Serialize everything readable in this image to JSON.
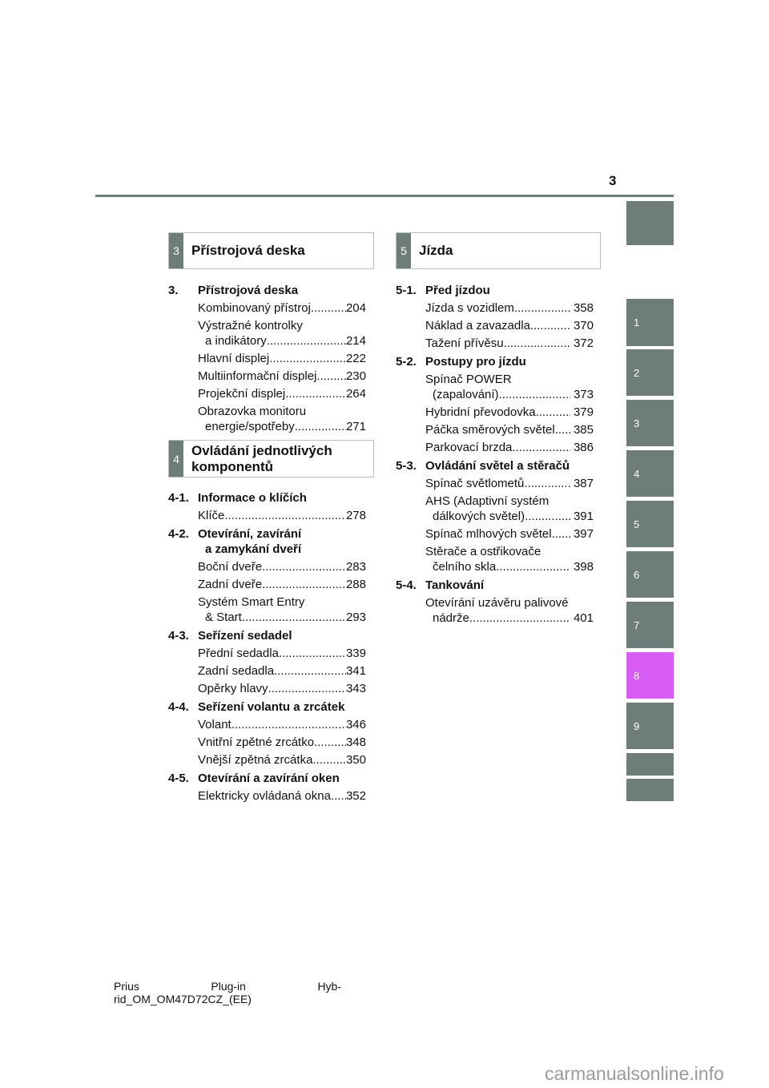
{
  "page_number": "3",
  "colors": {
    "tab_gray": "#6e7c7a",
    "tab_active": "#d65cf5"
  },
  "side_tabs": [
    "",
    "1",
    "2",
    "3",
    "4",
    "5",
    "6",
    "7",
    "8",
    "9",
    "",
    ""
  ],
  "active_tab": "8",
  "left": {
    "header1": {
      "num": "3",
      "title": "Přístrojová deska"
    },
    "block1": [
      {
        "num": "3.",
        "title": "Přístrojová deska",
        "entries": [
          {
            "lines": [],
            "label": "Kombinovaný přístroj",
            "page": "204"
          },
          {
            "lines": [
              "Výstražné kontrolky"
            ],
            "label": "a indikátory ",
            "page": "214"
          },
          {
            "lines": [],
            "label": "Hlavní displej ",
            "page": "222"
          },
          {
            "lines": [],
            "label": "Multiinformační displej ",
            "page": "230"
          },
          {
            "lines": [],
            "label": "Projekční displej",
            "page": "264"
          },
          {
            "lines": [
              "Obrazovka monitoru"
            ],
            "label": "energie/spotřeby ",
            "page": "271"
          }
        ]
      }
    ],
    "header2": {
      "num": "4",
      "title_line1": "Ovládání jednotlivých",
      "title_line2": "komponentů"
    },
    "block2": [
      {
        "num": "4-1.",
        "title": "Informace o klíčích",
        "entries": [
          {
            "lines": [],
            "label": "Klíče",
            "page": "278"
          }
        ]
      },
      {
        "num": "4-2.",
        "title": "Otevírání, zavírání",
        "title2": "a zamykání dveří",
        "entries": [
          {
            "lines": [],
            "label": "Boční dveře",
            "page": "283"
          },
          {
            "lines": [],
            "label": "Zadní dveře",
            "page": "288"
          },
          {
            "lines": [
              "Systém Smart Entry"
            ],
            "label": "& Start",
            "page": "293"
          }
        ]
      },
      {
        "num": "4-3.",
        "title": "Seřízení sedadel",
        "entries": [
          {
            "lines": [],
            "label": "Přední sedadla",
            "page": "339"
          },
          {
            "lines": [],
            "label": "Zadní sedadla ",
            "page": "341"
          },
          {
            "lines": [],
            "label": "Opěrky hlavy",
            "page": "343"
          }
        ]
      },
      {
        "num": "4-4.",
        "title": "Seřízení volantu a zrcátek",
        "entries": [
          {
            "lines": [],
            "label": "Volant",
            "page": "346"
          },
          {
            "lines": [],
            "label": "Vnitřní zpětné zrcátko ",
            "page": "348"
          },
          {
            "lines": [],
            "label": "Vnější zpětná zrcátka ",
            "page": "350"
          }
        ]
      },
      {
        "num": "4-5.",
        "title": "Otevírání a zavírání oken",
        "entries": [
          {
            "lines": [],
            "label": "Elektricky ovládaná okna ",
            "page": "352"
          }
        ]
      }
    ]
  },
  "right": {
    "header": {
      "num": "5",
      "title": "Jízda"
    },
    "block": [
      {
        "num": "5-1.",
        "title": "Před jízdou",
        "entries": [
          {
            "lines": [],
            "label": "Jízda s vozidlem",
            "page": " 358"
          },
          {
            "lines": [],
            "label": "Náklad a zavazadla",
            "page": " 370"
          },
          {
            "lines": [],
            "label": "Tažení přívěsu ",
            "page": " 372"
          }
        ]
      },
      {
        "num": "5-2.",
        "title": "Postupy pro jízdu",
        "entries": [
          {
            "lines": [
              "Spínač POWER"
            ],
            "label": "(zapalování) ",
            "page": " 373"
          },
          {
            "lines": [],
            "label": "Hybridní převodovka ",
            "page": " 379"
          },
          {
            "lines": [],
            "label": "Páčka směrových světel ",
            "page": " 385"
          },
          {
            "lines": [],
            "label": "Parkovací brzda ",
            "page": " 386"
          }
        ]
      },
      {
        "num": "5-3.",
        "title": "Ovládání světel a stěračů",
        "entries": [
          {
            "lines": [],
            "label": "Spínač světlometů",
            "page": " 387"
          },
          {
            "lines": [
              "AHS (Adaptivní systém"
            ],
            "label": "dálkových světel) ",
            "page": " 391"
          },
          {
            "lines": [],
            "label": "Spínač mlhových světel ",
            "page": " 397"
          },
          {
            "lines": [
              "Stěrače a ostřikovače"
            ],
            "label": "čelního skla ",
            "page": " 398"
          }
        ]
      },
      {
        "num": "5-4.",
        "title": "Tankování",
        "entries": [
          {
            "lines": [
              "Otevírání uzávěru palivové"
            ],
            "label": "nádrže ",
            "page": " 401"
          }
        ]
      }
    ]
  },
  "footer": {
    "w1": "Prius",
    "w2": "Plug-in",
    "w3": "Hyb-",
    "line2": "rid_OM_OM47D72CZ_(EE)"
  },
  "watermark": "carmanualsonline.info"
}
